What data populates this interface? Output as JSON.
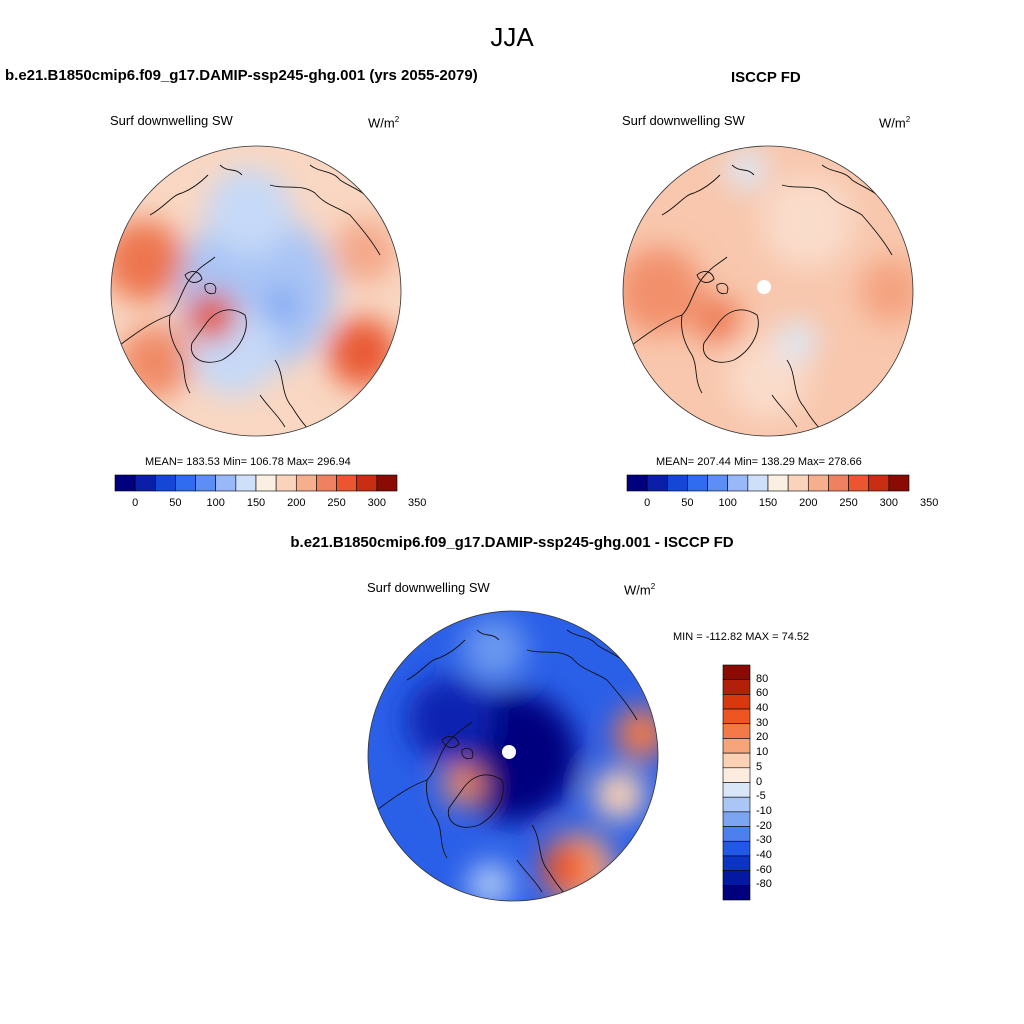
{
  "figure": {
    "season": "JJA"
  },
  "panels": {
    "model": {
      "title": "b.e21.B1850cmip6.f09_g17.DAMIP-ssp245-ghg.001 (yrs 2055-2079)",
      "variable": "Surf downwelling SW",
      "units_base": "W/m",
      "units_exp": "2",
      "stats": "MEAN= 183.53  Min= 106.78  Max= 296.94"
    },
    "obs": {
      "title": "ISCCP FD",
      "variable": "Surf downwelling SW",
      "units_base": "W/m",
      "units_exp": "2",
      "stats": "MEAN= 207.44  Min= 138.29  Max= 278.66"
    },
    "diff": {
      "title": "b.e21.B1850cmip6.f09_g17.DAMIP-ssp245-ghg.001 - ISCCP FD",
      "variable": "Surf downwelling SW",
      "units_base": "W/m",
      "units_exp": "2",
      "stats": "MIN = -112.82 MAX =  74.52"
    }
  },
  "colorbars": {
    "abs_colors": [
      "#00007f",
      "#0a1ea8",
      "#1547d6",
      "#2f6cf0",
      "#5c8ef5",
      "#98b8f8",
      "#cddff9",
      "#fbeee2",
      "#f9d3bb",
      "#f5ae8e",
      "#f08062",
      "#eb5530",
      "#c92d12",
      "#8a0b03"
    ],
    "abs_ticks": [
      "0",
      "50",
      "100",
      "150",
      "200",
      "250",
      "300",
      "350"
    ],
    "diff_colors": [
      "#8a0b03",
      "#b3200a",
      "#d8380e",
      "#ee5520",
      "#f37a48",
      "#f6a47a",
      "#fad1b3",
      "#fcece0",
      "#d8e6f7",
      "#aac6f4",
      "#7ba4f1",
      "#4d7fee",
      "#2158e6",
      "#0b33c4",
      "#0419a1",
      "#00007f"
    ],
    "diff_ticks": [
      "80",
      "60",
      "40",
      "30",
      "20",
      "10",
      "5",
      "0",
      "-5",
      "-10",
      "-20",
      "-30",
      "-40",
      "-60",
      "-80"
    ]
  },
  "map_fields": {
    "model": {
      "base": "#f9d7c2",
      "blobs": [
        {
          "color": "#a9c4f5",
          "ang": 0,
          "r": 0.0,
          "size": 0.55
        },
        {
          "color": "#c6d9f8",
          "ang": 95,
          "r": 0.55,
          "size": 0.3
        },
        {
          "color": "#c6d9f8",
          "ang": 250,
          "r": 0.45,
          "size": 0.3
        },
        {
          "color": "#ed7650",
          "ang": 165,
          "r": 0.8,
          "size": 0.28
        },
        {
          "color": "#f08a66",
          "ang": 215,
          "r": 0.85,
          "size": 0.25
        },
        {
          "color": "#e95a35",
          "ang": 330,
          "r": 0.85,
          "size": 0.24
        },
        {
          "color": "#f4a88a",
          "ang": 20,
          "r": 0.8,
          "size": 0.22
        },
        {
          "color": "#e4502a",
          "ang": 210,
          "r": 0.35,
          "size": 0.17
        },
        {
          "color": "#7fa6f1",
          "ang": 330,
          "r": 0.2,
          "size": 0.12
        }
      ]
    },
    "obs": {
      "base": "#f8c7ad",
      "blobs": [
        {
          "color": "#fadccb",
          "ang": 60,
          "r": 0.55,
          "size": 0.32
        },
        {
          "color": "#fadccb",
          "ang": 270,
          "r": 0.6,
          "size": 0.28
        },
        {
          "color": "#f2906c",
          "ang": 180,
          "r": 0.75,
          "size": 0.3
        },
        {
          "color": "#f4a27f",
          "ang": 0,
          "r": 0.85,
          "size": 0.22
        },
        {
          "color": "#dce8f8",
          "ang": 100,
          "r": 0.85,
          "size": 0.14
        },
        {
          "color": "#dce8f8",
          "ang": 300,
          "r": 0.4,
          "size": 0.14
        },
        {
          "color": "#ee7a54",
          "ang": 210,
          "r": 0.4,
          "size": 0.16
        }
      ]
    },
    "diff": {
      "base": "#2a5fe8",
      "blobs": [
        {
          "color": "#00007f",
          "ang": 0,
          "r": 0.0,
          "size": 0.45
        },
        {
          "color": "#0a22b0",
          "ang": 150,
          "r": 0.5,
          "size": 0.3
        },
        {
          "color": "#6b98f0",
          "ang": 100,
          "r": 0.75,
          "size": 0.22
        },
        {
          "color": "#f6a47a",
          "ang": 300,
          "r": 0.9,
          "size": 0.25
        },
        {
          "color": "#f37a48",
          "ang": 10,
          "r": 0.9,
          "size": 0.18
        },
        {
          "color": "#ee5520",
          "ang": 295,
          "r": 0.85,
          "size": 0.17
        },
        {
          "color": "#fad1b3",
          "ang": 340,
          "r": 0.78,
          "size": 0.18
        },
        {
          "color": "#f08a5e",
          "ang": 210,
          "r": 0.4,
          "size": 0.14
        },
        {
          "color": "#aac6f4",
          "ang": 260,
          "r": 0.9,
          "size": 0.16
        }
      ]
    }
  }
}
